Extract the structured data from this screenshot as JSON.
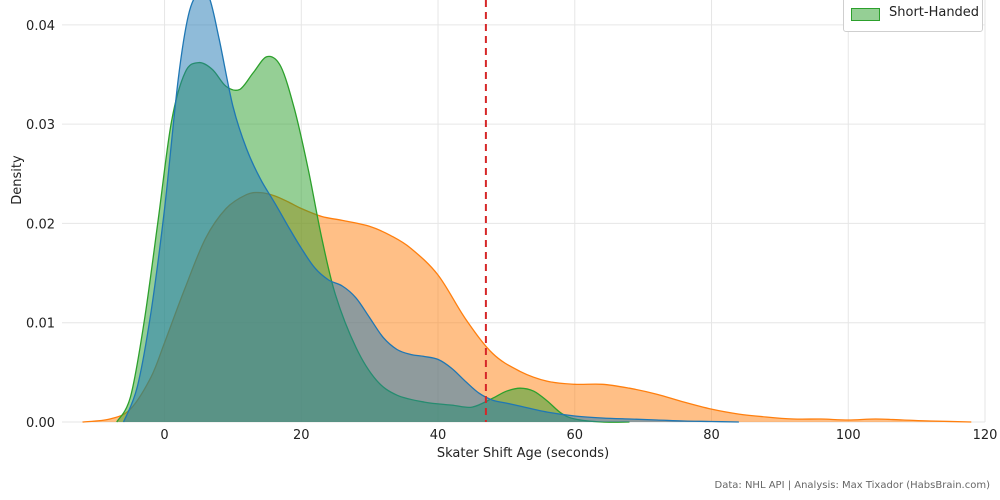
{
  "chart_data": {
    "type": "area",
    "xlabel": "Skater Shift Age (seconds)",
    "ylabel": "Density",
    "xlim": [
      -15,
      120
    ],
    "ylim": [
      0,
      0.0425
    ],
    "xticks": [
      0,
      20,
      40,
      60,
      80,
      100,
      120
    ],
    "yticks": [
      "0.00",
      "0.01",
      "0.02",
      "0.03",
      "0.04"
    ],
    "grid": true,
    "reference_line": {
      "x": 47,
      "color": "#d62728",
      "style": "dashed"
    },
    "legend": {
      "placement": "top-right",
      "visible_entries": [
        "Short-Handed"
      ]
    },
    "series": [
      {
        "color": "#ff7f0e",
        "x": [
          -12,
          -8,
          -5,
          -2,
          0,
          3,
          6,
          9,
          12,
          14,
          16,
          18,
          20,
          23,
          26,
          30,
          33,
          36,
          40,
          44,
          48,
          52,
          56,
          60,
          64,
          68,
          72,
          76,
          80,
          84,
          88,
          92,
          96,
          100,
          104,
          108,
          112,
          118
        ],
        "y": [
          0,
          0.0003,
          0.0013,
          0.0045,
          0.008,
          0.0135,
          0.0185,
          0.0215,
          0.0229,
          0.0231,
          0.0228,
          0.0222,
          0.0215,
          0.0207,
          0.0203,
          0.0197,
          0.0188,
          0.0175,
          0.0148,
          0.0104,
          0.0069,
          0.0051,
          0.0041,
          0.0038,
          0.0038,
          0.0034,
          0.0028,
          0.002,
          0.0013,
          0.0008,
          0.0005,
          0.0003,
          0.0003,
          0.0002,
          0.0003,
          0.0002,
          0.0001,
          0
        ]
      },
      {
        "color": "#2ca02c",
        "name": "Short-Handed",
        "x": [
          -7,
          -5,
          -3,
          -1,
          1,
          3,
          5,
          7,
          9,
          11,
          13,
          15,
          17,
          19,
          21,
          23,
          25,
          28,
          31,
          34,
          38,
          42,
          45,
          48,
          50,
          52,
          54,
          56,
          58,
          60,
          64,
          68
        ],
        "y": [
          0,
          0.0025,
          0.01,
          0.02,
          0.0302,
          0.0352,
          0.0362,
          0.0355,
          0.0338,
          0.0335,
          0.0352,
          0.0368,
          0.0358,
          0.0315,
          0.0255,
          0.0185,
          0.0128,
          0.0075,
          0.0042,
          0.0027,
          0.002,
          0.0017,
          0.0015,
          0.0024,
          0.0031,
          0.0034,
          0.0031,
          0.0021,
          0.0009,
          0.0003,
          0,
          0
        ]
      },
      {
        "color": "#1f77b4",
        "x": [
          -6,
          -4,
          -2,
          0,
          2,
          3.5,
          5,
          6.5,
          8,
          10,
          12,
          14,
          16,
          18,
          20,
          22,
          24,
          26,
          28,
          30,
          32,
          34,
          36,
          38,
          40,
          42,
          44,
          46,
          48,
          50,
          52,
          56,
          60,
          64,
          68,
          72,
          76,
          80,
          84
        ],
        "y": [
          0,
          0.0035,
          0.011,
          0.0215,
          0.0345,
          0.041,
          0.0432,
          0.0428,
          0.0385,
          0.0318,
          0.0275,
          0.0245,
          0.0222,
          0.0198,
          0.0175,
          0.0155,
          0.0143,
          0.0137,
          0.0125,
          0.0105,
          0.0085,
          0.0073,
          0.0068,
          0.0066,
          0.0063,
          0.0054,
          0.0041,
          0.0029,
          0.0022,
          0.0019,
          0.0016,
          0.001,
          0.0006,
          0.0004,
          0.0003,
          0.0002,
          0.0001,
          5e-05,
          0
        ]
      }
    ]
  },
  "credit": "Data: NHL API | Analysis: Max Tixador (HabsBrain.com)"
}
